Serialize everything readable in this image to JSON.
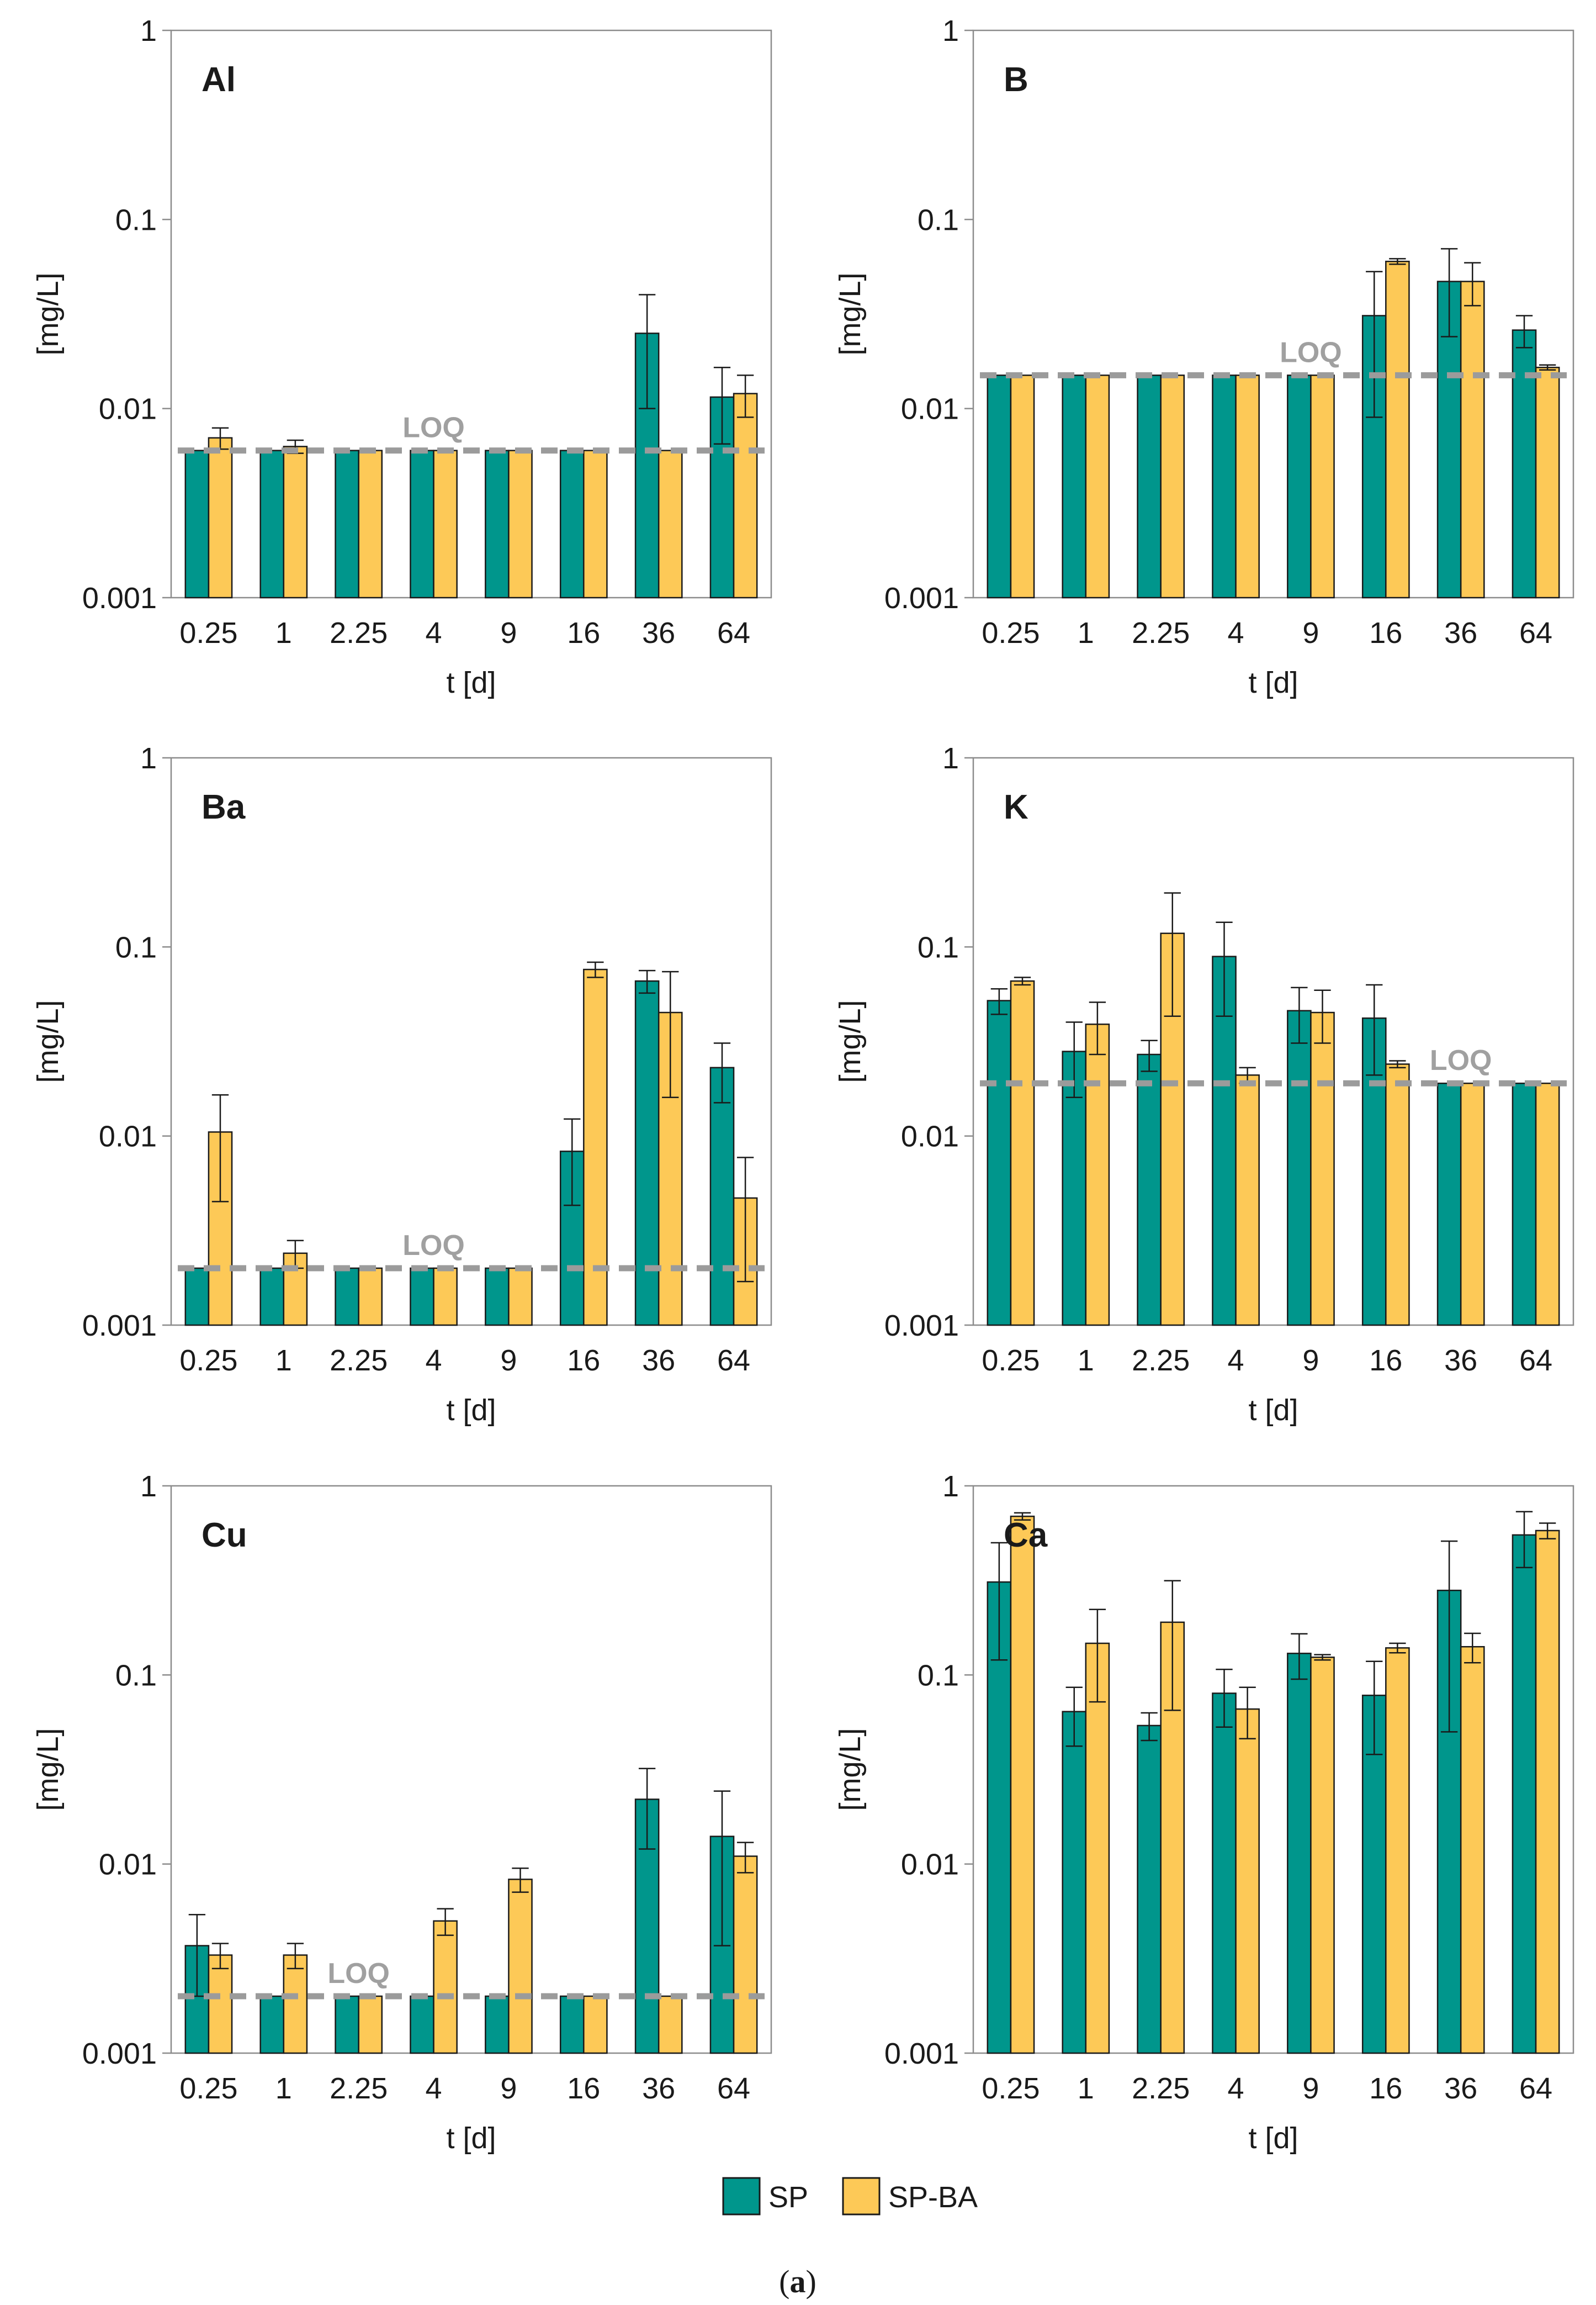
{
  "legend": [
    {
      "label": "SP",
      "color": "#00968c"
    },
    {
      "label": "SP-BA",
      "color": "#fdc957"
    }
  ],
  "caption": {
    "open": "(",
    "letter": "a",
    "close": ")"
  },
  "colors": {
    "sp": "#00968c",
    "spba": "#fdc957",
    "loq": "#9b9b9b",
    "axis": "#8c8c8c",
    "bar_edge": "#1a1a1a"
  },
  "chart_data": [
    {
      "type": "bar",
      "title": "Al",
      "xlabel": "t [d]",
      "ylabel": "[mg/L]",
      "yscale": "log",
      "ylim": [
        0.001,
        1
      ],
      "yticks": [
        "0.001",
        "0.01",
        "0.1",
        "1"
      ],
      "categories": [
        "0.25",
        "1",
        "2.25",
        "4",
        "9",
        "16",
        "36",
        "64"
      ],
      "loq": {
        "label": "LOQ",
        "value": 0.006,
        "label_category": 3
      },
      "series": [
        {
          "name": "SP",
          "values": [
            0.006,
            0.006,
            0.006,
            0.006,
            0.006,
            0.006,
            0.025,
            0.0115
          ],
          "error": [
            0,
            0,
            0,
            0,
            0,
            0,
            0.015,
            0.005
          ]
        },
        {
          "name": "SP-BA",
          "values": [
            0.007,
            0.0063,
            0.006,
            0.006,
            0.006,
            0.006,
            0.006,
            0.012
          ],
          "error": [
            0.0009,
            0.0005,
            0,
            0,
            0,
            0,
            0,
            0.003
          ]
        }
      ]
    },
    {
      "type": "bar",
      "title": "B",
      "xlabel": "t [d]",
      "ylabel": "[mg/L]",
      "yscale": "log",
      "ylim": [
        0.001,
        1
      ],
      "yticks": [
        "0.001",
        "0.01",
        "0.1",
        "1"
      ],
      "categories": [
        "0.25",
        "1",
        "2.25",
        "4",
        "9",
        "16",
        "36",
        "64"
      ],
      "loq": {
        "label": "LOQ",
        "value": 0.015,
        "label_category": 4
      },
      "series": [
        {
          "name": "SP",
          "values": [
            0.015,
            0.015,
            0.015,
            0.015,
            0.015,
            0.031,
            0.047,
            0.026
          ],
          "error": [
            0,
            0,
            0,
            0,
            0,
            0.022,
            0.023,
            0.005
          ]
        },
        {
          "name": "SP-BA",
          "values": [
            0.015,
            0.015,
            0.015,
            0.015,
            0.015,
            0.06,
            0.047,
            0.0165
          ],
          "error": [
            0,
            0,
            0,
            0,
            0,
            0.002,
            0.012,
            0.0005
          ]
        }
      ]
    },
    {
      "type": "bar",
      "title": "Ba",
      "xlabel": "t [d]",
      "ylabel": "[mg/L]",
      "yscale": "log",
      "ylim": [
        0.001,
        1
      ],
      "yticks": [
        "0.001",
        "0.01",
        "0.1",
        "1"
      ],
      "categories": [
        "0.25",
        "1",
        "2.25",
        "4",
        "9",
        "16",
        "36",
        "64"
      ],
      "loq": {
        "label": "LOQ",
        "value": 0.002,
        "label_category": 3
      },
      "series": [
        {
          "name": "SP",
          "values": [
            0.002,
            0.002,
            0.002,
            0.002,
            0.002,
            0.0083,
            0.066,
            0.023
          ],
          "error": [
            0,
            0,
            0,
            0,
            0,
            0.004,
            0.009,
            0.008
          ]
        },
        {
          "name": "SP-BA",
          "values": [
            0.0105,
            0.0024,
            0.002,
            0.002,
            0.002,
            0.076,
            0.045,
            0.0047
          ],
          "error": [
            0.006,
            0.0004,
            0,
            0,
            0,
            0.007,
            0.029,
            0.003
          ]
        }
      ]
    },
    {
      "type": "bar",
      "title": "K",
      "xlabel": "t [d]",
      "ylabel": "[mg/L]",
      "yscale": "log",
      "ylim": [
        0.001,
        1
      ],
      "yticks": [
        "0.001",
        "0.01",
        "0.1",
        "1"
      ],
      "categories": [
        "0.25",
        "1",
        "2.25",
        "4",
        "9",
        "16",
        "36",
        "64"
      ],
      "loq": {
        "label": "LOQ",
        "value": 0.019,
        "label_category": 6
      },
      "series": [
        {
          "name": "SP",
          "values": [
            0.052,
            0.028,
            0.027,
            0.089,
            0.046,
            0.042,
            0.019,
            0.019
          ],
          "error": [
            0.008,
            0.012,
            0.005,
            0.046,
            0.015,
            0.021,
            0,
            0
          ]
        },
        {
          "name": "SP-BA",
          "values": [
            0.066,
            0.039,
            0.118,
            0.021,
            0.045,
            0.024,
            0.019,
            0.019
          ],
          "error": [
            0.003,
            0.012,
            0.075,
            0.002,
            0.014,
            0.001,
            0,
            0
          ]
        }
      ]
    },
    {
      "type": "bar",
      "title": "Cu",
      "xlabel": "t [d]",
      "ylabel": "[mg/L]",
      "yscale": "log",
      "ylim": [
        0.001,
        1
      ],
      "yticks": [
        "0.001",
        "0.01",
        "0.1",
        "1"
      ],
      "categories": [
        "0.25",
        "1",
        "2.25",
        "4",
        "9",
        "16",
        "36",
        "64"
      ],
      "loq": {
        "label": "LOQ",
        "value": 0.002,
        "label_category": 2
      },
      "series": [
        {
          "name": "SP",
          "values": [
            0.0037,
            0.002,
            0.002,
            0.002,
            0.002,
            0.002,
            0.022,
            0.014
          ],
          "error": [
            0.0017,
            0,
            0,
            0,
            0,
            0,
            0.01,
            0.0103
          ]
        },
        {
          "name": "SP-BA",
          "values": [
            0.0033,
            0.0033,
            0.002,
            0.005,
            0.0083,
            0.002,
            0.002,
            0.011
          ],
          "error": [
            0.0005,
            0.0005,
            0,
            0.0008,
            0.0012,
            0,
            0,
            0.002
          ]
        }
      ]
    },
    {
      "type": "bar",
      "title": "Ca",
      "xlabel": "t [d]",
      "ylabel": "[mg/L]",
      "yscale": "log",
      "ylim": [
        0.001,
        1
      ],
      "yticks": [
        "0.001",
        "0.01",
        "0.1",
        "1"
      ],
      "categories": [
        "0.25",
        "1",
        "2.25",
        "4",
        "9",
        "16",
        "36",
        "64"
      ],
      "loq": null,
      "series": [
        {
          "name": "SP",
          "values": [
            0.31,
            0.064,
            0.054,
            0.08,
            0.13,
            0.078,
            0.28,
            0.55
          ],
          "error": [
            0.19,
            0.022,
            0.009,
            0.027,
            0.035,
            0.04,
            0.23,
            0.18
          ]
        },
        {
          "name": "SP-BA",
          "values": [
            0.69,
            0.147,
            0.19,
            0.066,
            0.124,
            0.139,
            0.141,
            0.58
          ],
          "error": [
            0.03,
            0.075,
            0.125,
            0.02,
            0.004,
            0.008,
            0.025,
            0.055
          ]
        }
      ]
    }
  ]
}
